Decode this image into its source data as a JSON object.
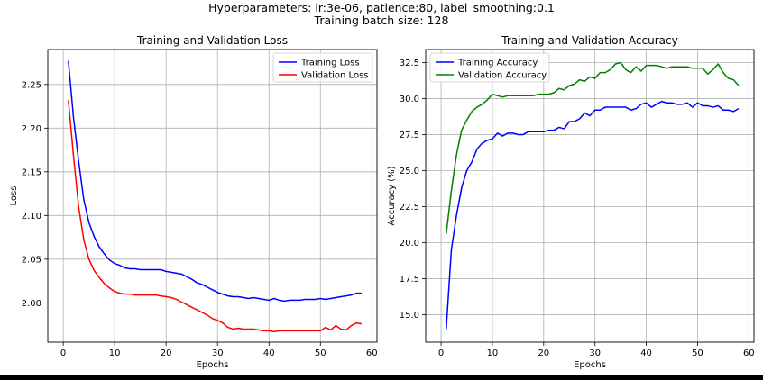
{
  "figure": {
    "suptitle_lines": [
      "Hyperparameters: lr:3e-06, patience:80, label_smoothing:0.1",
      "Training batch size: 128"
    ]
  },
  "chart_data": [
    {
      "type": "line",
      "title": "Training and Validation Loss",
      "xlabel": "Epochs",
      "ylabel": "Loss",
      "xlim": [
        -3,
        61
      ],
      "ylim": [
        1.955,
        2.29
      ],
      "xticks": [
        0,
        10,
        20,
        30,
        40,
        50,
        60
      ],
      "yticks": [
        2.0,
        2.05,
        2.1,
        2.15,
        2.2,
        2.25
      ],
      "ytick_labels": [
        "2.00",
        "2.05",
        "2.10",
        "2.15",
        "2.20",
        "2.25"
      ],
      "grid": true,
      "legend_position": "upper-right",
      "x": [
        1,
        2,
        3,
        4,
        5,
        6,
        7,
        8,
        9,
        10,
        11,
        12,
        13,
        14,
        15,
        16,
        17,
        18,
        19,
        20,
        21,
        22,
        23,
        24,
        25,
        26,
        27,
        28,
        29,
        30,
        31,
        32,
        33,
        34,
        35,
        36,
        37,
        38,
        39,
        40,
        41,
        42,
        43,
        44,
        45,
        46,
        47,
        48,
        49,
        50,
        51,
        52,
        53,
        54,
        55,
        56,
        57,
        58
      ],
      "series": [
        {
          "name": "Training Loss",
          "color": "#0000ff",
          "values": [
            2.277,
            2.212,
            2.162,
            2.118,
            2.092,
            2.076,
            2.064,
            2.056,
            2.049,
            2.045,
            2.043,
            2.04,
            2.039,
            2.039,
            2.038,
            2.038,
            2.038,
            2.038,
            2.038,
            2.036,
            2.035,
            2.034,
            2.033,
            2.03,
            2.027,
            2.023,
            2.021,
            2.018,
            2.015,
            2.012,
            2.01,
            2.008,
            2.007,
            2.007,
            2.006,
            2.005,
            2.006,
            2.005,
            2.004,
            2.003,
            2.005,
            2.003,
            2.002,
            2.003,
            2.003,
            2.003,
            2.004,
            2.004,
            2.004,
            2.005,
            2.004,
            2.005,
            2.006,
            2.007,
            2.008,
            2.009,
            2.011,
            2.011
          ]
        },
        {
          "name": "Validation Loss",
          "color": "#ff0000",
          "values": [
            2.232,
            2.168,
            2.11,
            2.072,
            2.05,
            2.037,
            2.029,
            2.022,
            2.017,
            2.013,
            2.011,
            2.01,
            2.01,
            2.009,
            2.009,
            2.009,
            2.009,
            2.009,
            2.008,
            2.007,
            2.006,
            2.004,
            2.001,
            1.998,
            1.995,
            1.992,
            1.989,
            1.986,
            1.982,
            1.98,
            1.977,
            1.972,
            1.97,
            1.971,
            1.97,
            1.97,
            1.97,
            1.969,
            1.968,
            1.968,
            1.967,
            1.968,
            1.968,
            1.968,
            1.968,
            1.968,
            1.968,
            1.968,
            1.968,
            1.968,
            1.972,
            1.969,
            1.974,
            1.97,
            1.969,
            1.974,
            1.977,
            1.976
          ]
        }
      ]
    },
    {
      "type": "line",
      "title": "Training and Validation Accuracy",
      "xlabel": "Epochs",
      "ylabel": "Accuracy (%)",
      "xlim": [
        -3,
        61
      ],
      "ylim": [
        13.1,
        33.4
      ],
      "xticks": [
        0,
        10,
        20,
        30,
        40,
        50,
        60
      ],
      "yticks": [
        15.0,
        17.5,
        20.0,
        22.5,
        25.0,
        27.5,
        30.0,
        32.5
      ],
      "ytick_labels": [
        "15.0",
        "17.5",
        "20.0",
        "22.5",
        "25.0",
        "27.5",
        "30.0",
        "32.5"
      ],
      "grid": true,
      "legend_position": "upper-left",
      "x": [
        1,
        2,
        3,
        4,
        5,
        6,
        7,
        8,
        9,
        10,
        11,
        12,
        13,
        14,
        15,
        16,
        17,
        18,
        19,
        20,
        21,
        22,
        23,
        24,
        25,
        26,
        27,
        28,
        29,
        30,
        31,
        32,
        33,
        34,
        35,
        36,
        37,
        38,
        39,
        40,
        41,
        42,
        43,
        44,
        45,
        46,
        47,
        48,
        49,
        50,
        51,
        52,
        53,
        54,
        55,
        56,
        57,
        58
      ],
      "series": [
        {
          "name": "Training Accuracy",
          "color": "#0000ff",
          "values": [
            14.0,
            19.5,
            21.9,
            23.8,
            25.0,
            25.6,
            26.5,
            26.9,
            27.1,
            27.2,
            27.6,
            27.4,
            27.6,
            27.6,
            27.5,
            27.5,
            27.7,
            27.7,
            27.7,
            27.7,
            27.8,
            27.8,
            28.0,
            27.9,
            28.4,
            28.4,
            28.6,
            29.0,
            28.8,
            29.2,
            29.2,
            29.4,
            29.4,
            29.4,
            29.4,
            29.4,
            29.2,
            29.3,
            29.6,
            29.7,
            29.4,
            29.6,
            29.8,
            29.7,
            29.7,
            29.6,
            29.6,
            29.7,
            29.4,
            29.7,
            29.5,
            29.5,
            29.4,
            29.5,
            29.2,
            29.2,
            29.1,
            29.3
          ]
        },
        {
          "name": "Validation Accuracy",
          "color": "#008000",
          "values": [
            20.6,
            23.6,
            26.1,
            27.8,
            28.5,
            29.1,
            29.4,
            29.6,
            29.9,
            30.3,
            30.2,
            30.1,
            30.2,
            30.2,
            30.2,
            30.2,
            30.2,
            30.2,
            30.3,
            30.3,
            30.3,
            30.4,
            30.7,
            30.6,
            30.9,
            31.0,
            31.3,
            31.2,
            31.5,
            31.4,
            31.8,
            31.8,
            32.0,
            32.4,
            32.5,
            32.0,
            31.8,
            32.2,
            31.9,
            32.3,
            32.3,
            32.3,
            32.2,
            32.1,
            32.2,
            32.2,
            32.2,
            32.2,
            32.1,
            32.1,
            32.1,
            31.7,
            32.0,
            32.4,
            31.8,
            31.4,
            31.3,
            30.9
          ]
        }
      ]
    }
  ]
}
